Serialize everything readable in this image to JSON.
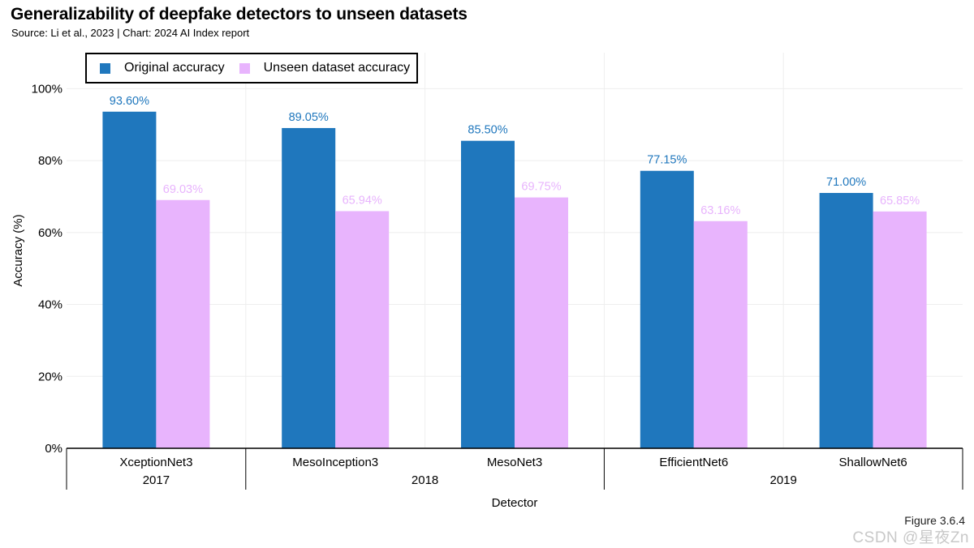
{
  "title": "Generalizability of deepfake detectors to unseen datasets",
  "subtitle": "Source: Li et al., 2023 | Chart: 2024 AI Index report",
  "figure_label": "Figure 3.6.4",
  "watermark": "CSDN @星夜Zn",
  "colors": {
    "original": "#1f77bd",
    "unseen": "#e8b4fd",
    "axis": "#000000",
    "grid": "#eeeeee"
  },
  "chart_data": {
    "type": "bar",
    "title": "Generalizability of deepfake detectors to unseen datasets",
    "xlabel": "Detector",
    "ylabel": "Accuracy (%)",
    "ylim": [
      0,
      110
    ],
    "yticks": [
      0,
      20,
      40,
      60,
      80,
      100
    ],
    "ytick_labels": [
      "0%",
      "20%",
      "40%",
      "60%",
      "80%",
      "100%"
    ],
    "categories": [
      "XceptionNet3",
      "MesoInception3",
      "MesoNet3",
      "EfficientNet6",
      "ShallowNet6"
    ],
    "groups": [
      {
        "label": "2017",
        "categories": [
          "XceptionNet3"
        ]
      },
      {
        "label": "2018",
        "categories": [
          "MesoInception3",
          "MesoNet3"
        ]
      },
      {
        "label": "2019",
        "categories": [
          "EfficientNet6",
          "ShallowNet6"
        ]
      }
    ],
    "series": [
      {
        "name": "Original accuracy",
        "values": [
          93.6,
          89.05,
          85.5,
          77.15,
          71.0
        ],
        "labels": [
          "93.60%",
          "89.05%",
          "85.50%",
          "77.15%",
          "71.00%"
        ]
      },
      {
        "name": "Unseen dataset accuracy",
        "values": [
          69.03,
          65.94,
          69.75,
          63.16,
          65.85
        ],
        "labels": [
          "69.03%",
          "65.94%",
          "69.75%",
          "63.16%",
          "65.85%"
        ]
      }
    ],
    "legend": "top-left",
    "grid": true
  }
}
